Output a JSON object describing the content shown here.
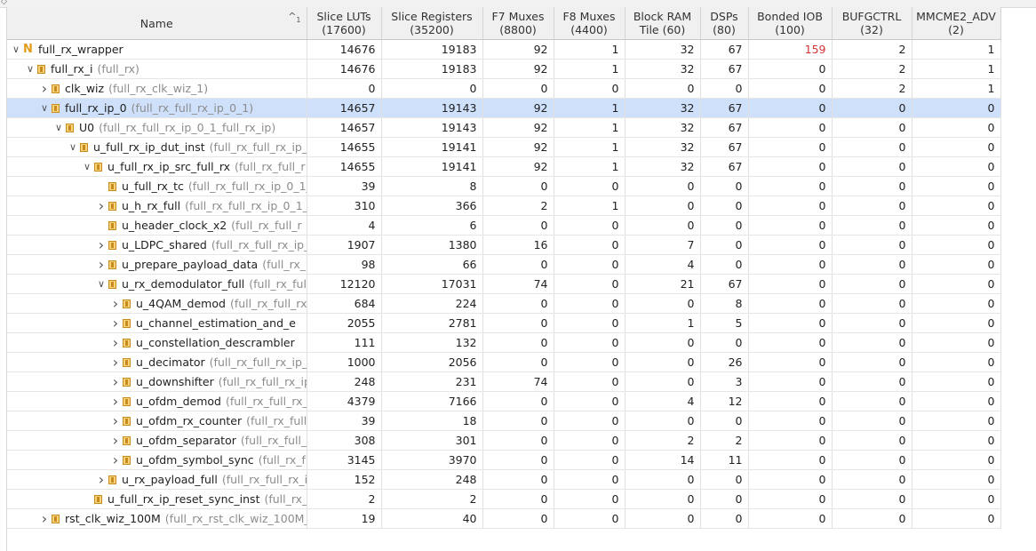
{
  "columns": [
    {
      "label": "Name"
    },
    {
      "label": "Slice LUTs",
      "sub": "(17600)"
    },
    {
      "label": "Slice Registers",
      "sub": "(35200)"
    },
    {
      "label": "F7 Muxes",
      "sub": "(8800)"
    },
    {
      "label": "F8 Muxes",
      "sub": "(4400)"
    },
    {
      "label": "Block RAM",
      "sub": "Tile (60)"
    },
    {
      "label": "DSPs",
      "sub": "(80)"
    },
    {
      "label": "Bonded IOB",
      "sub": "(100)"
    },
    {
      "label": "BUFGCTRL",
      "sub": "(32)"
    },
    {
      "label": "MMCME2_ADV",
      "sub": "(2)"
    }
  ],
  "sort_indicator": {
    "arrow": "^",
    "index": "1"
  },
  "rows": [
    {
      "depth": 0,
      "expander": "expanded",
      "icon": "top",
      "name": "full_rx_wrapper",
      "module": "",
      "values": [
        "14676",
        "19183",
        "92",
        "1",
        "32",
        "67",
        "159",
        "2",
        "1"
      ],
      "red_col": 6
    },
    {
      "depth": 1,
      "expander": "expanded",
      "icon": "module",
      "name": "full_rx_i",
      "module": "(full_rx)",
      "values": [
        "14676",
        "19183",
        "92",
        "1",
        "32",
        "67",
        "0",
        "2",
        "1"
      ]
    },
    {
      "depth": 2,
      "expander": "collapsed",
      "icon": "module",
      "name": "clk_wiz",
      "module": "(full_rx_clk_wiz_1)",
      "values": [
        "0",
        "0",
        "0",
        "0",
        "0",
        "0",
        "0",
        "2",
        "1"
      ]
    },
    {
      "depth": 2,
      "expander": "expanded",
      "icon": "module",
      "name": "full_rx_ip_0",
      "module": "(full_rx_full_rx_ip_0_1)",
      "values": [
        "14657",
        "19143",
        "92",
        "1",
        "32",
        "67",
        "0",
        "0",
        "0"
      ],
      "selected": true
    },
    {
      "depth": 3,
      "expander": "expanded",
      "icon": "module",
      "name": "U0",
      "module": "(full_rx_full_rx_ip_0_1_full_rx_ip)",
      "values": [
        "14657",
        "19143",
        "92",
        "1",
        "32",
        "67",
        "0",
        "0",
        "0"
      ]
    },
    {
      "depth": 4,
      "expander": "expanded",
      "icon": "module",
      "name": "u_full_rx_ip_dut_inst",
      "module": "(full_rx_full_rx_ip_",
      "values": [
        "14655",
        "19141",
        "92",
        "1",
        "32",
        "67",
        "0",
        "0",
        "0"
      ]
    },
    {
      "depth": 5,
      "expander": "expanded",
      "icon": "module",
      "name": "u_full_rx_ip_src_full_rx",
      "module": "(full_rx_full_r",
      "values": [
        "14655",
        "19141",
        "92",
        "1",
        "32",
        "67",
        "0",
        "0",
        "0"
      ]
    },
    {
      "depth": 6,
      "expander": "none",
      "icon": "module",
      "name": "u_full_rx_tc",
      "module": "(full_rx_full_rx_ip_0_1_",
      "values": [
        "39",
        "8",
        "0",
        "0",
        "0",
        "0",
        "0",
        "0",
        "0"
      ]
    },
    {
      "depth": 6,
      "expander": "collapsed",
      "icon": "module",
      "name": "u_h_rx_full",
      "module": "(full_rx_full_rx_ip_0_1_",
      "values": [
        "310",
        "366",
        "2",
        "1",
        "0",
        "0",
        "0",
        "0",
        "0"
      ]
    },
    {
      "depth": 6,
      "expander": "none",
      "icon": "module",
      "name": "u_header_clock_x2",
      "module": "(full_rx_full_r",
      "values": [
        "4",
        "6",
        "0",
        "0",
        "0",
        "0",
        "0",
        "0",
        "0"
      ]
    },
    {
      "depth": 6,
      "expander": "collapsed",
      "icon": "module",
      "name": "u_LDPC_shared",
      "module": "(full_rx_full_rx_ip_",
      "values": [
        "1907",
        "1380",
        "16",
        "0",
        "7",
        "0",
        "0",
        "0",
        "0"
      ]
    },
    {
      "depth": 6,
      "expander": "collapsed",
      "icon": "module",
      "name": "u_prepare_payload_data",
      "module": "(full_rx_",
      "values": [
        "98",
        "66",
        "0",
        "0",
        "4",
        "0",
        "0",
        "0",
        "0"
      ]
    },
    {
      "depth": 6,
      "expander": "expanded",
      "icon": "module",
      "name": "u_rx_demodulator_full",
      "module": "(full_rx_ful",
      "values": [
        "12120",
        "17031",
        "74",
        "0",
        "21",
        "67",
        "0",
        "0",
        "0"
      ]
    },
    {
      "depth": 7,
      "expander": "collapsed",
      "icon": "module",
      "name": "u_4QAM_demod",
      "module": "(full_rx_full_rx",
      "values": [
        "684",
        "224",
        "0",
        "0",
        "0",
        "8",
        "0",
        "0",
        "0"
      ]
    },
    {
      "depth": 7,
      "expander": "collapsed",
      "icon": "module",
      "name": "u_channel_estimation_and_e",
      "module": "",
      "values": [
        "2055",
        "2781",
        "0",
        "0",
        "1",
        "5",
        "0",
        "0",
        "0"
      ]
    },
    {
      "depth": 7,
      "expander": "collapsed",
      "icon": "module",
      "name": "u_constellation_descrambler",
      "module": "",
      "values": [
        "111",
        "132",
        "0",
        "0",
        "0",
        "0",
        "0",
        "0",
        "0"
      ]
    },
    {
      "depth": 7,
      "expander": "collapsed",
      "icon": "module",
      "name": "u_decimator",
      "module": "(full_rx_full_rx_ip_",
      "values": [
        "1000",
        "2056",
        "0",
        "0",
        "0",
        "26",
        "0",
        "0",
        "0"
      ]
    },
    {
      "depth": 7,
      "expander": "collapsed",
      "icon": "module",
      "name": "u_downshifter",
      "module": "(full_rx_full_rx_ip",
      "values": [
        "248",
        "231",
        "74",
        "0",
        "0",
        "3",
        "0",
        "0",
        "0"
      ]
    },
    {
      "depth": 7,
      "expander": "collapsed",
      "icon": "module",
      "name": "u_ofdm_demod",
      "module": "(full_rx_full_rx_",
      "values": [
        "4379",
        "7166",
        "0",
        "0",
        "4",
        "12",
        "0",
        "0",
        "0"
      ]
    },
    {
      "depth": 7,
      "expander": "collapsed",
      "icon": "module",
      "name": "u_ofdm_rx_counter",
      "module": "(full_rx_full",
      "values": [
        "39",
        "18",
        "0",
        "0",
        "0",
        "0",
        "0",
        "0",
        "0"
      ]
    },
    {
      "depth": 7,
      "expander": "collapsed",
      "icon": "module",
      "name": "u_ofdm_separator",
      "module": "(full_rx_full_",
      "values": [
        "308",
        "301",
        "0",
        "0",
        "2",
        "2",
        "0",
        "0",
        "0"
      ]
    },
    {
      "depth": 7,
      "expander": "collapsed",
      "icon": "module",
      "name": "u_ofdm_symbol_sync",
      "module": "(full_rx_f",
      "values": [
        "3145",
        "3970",
        "0",
        "0",
        "14",
        "11",
        "0",
        "0",
        "0"
      ]
    },
    {
      "depth": 6,
      "expander": "collapsed",
      "icon": "module",
      "name": "u_rx_payload_full",
      "module": "(full_rx_full_rx_i",
      "values": [
        "152",
        "248",
        "0",
        "0",
        "0",
        "0",
        "0",
        "0",
        "0"
      ]
    },
    {
      "depth": 5,
      "expander": "none",
      "icon": "module",
      "name": "u_full_rx_ip_reset_sync_inst",
      "module": "(full_rx_fu",
      "values": [
        "2",
        "2",
        "0",
        "0",
        "0",
        "0",
        "0",
        "0",
        "0"
      ]
    },
    {
      "depth": 2,
      "expander": "collapsed",
      "icon": "module",
      "name": "rst_clk_wiz_100M",
      "module": "(full_rx_rst_clk_wiz_100M_",
      "values": [
        "19",
        "40",
        "0",
        "0",
        "0",
        "0",
        "0",
        "0",
        "0"
      ]
    }
  ],
  "colors": {
    "header_bg": "#f0f0f0",
    "selected_row": "#cfe0fb",
    "red_value": "#d43535",
    "module_icon": "#f7d37a",
    "module_text": "#8c8c8c"
  }
}
